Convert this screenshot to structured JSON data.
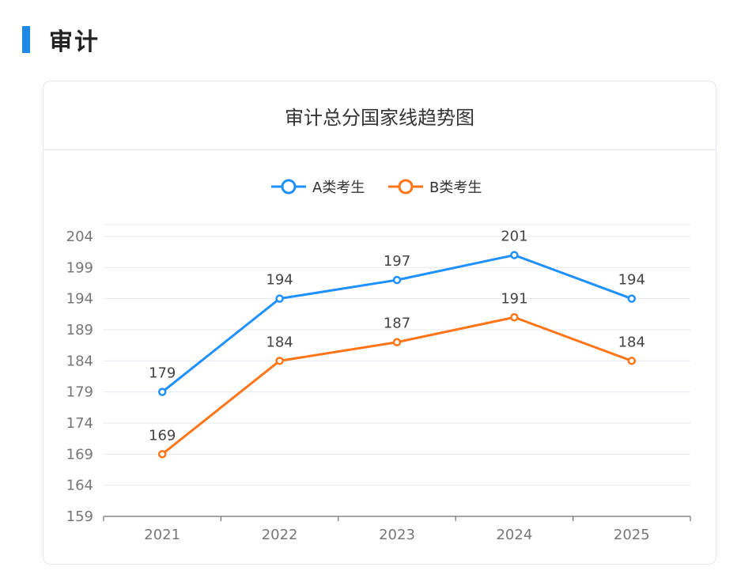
{
  "section": {
    "title": "审计"
  },
  "card": {
    "title": "审计总分国家线趋势图"
  },
  "colors": {
    "accent": "#1e88e5",
    "seriesA": "#1e90ff",
    "seriesB": "#ff7518"
  },
  "chart_data": {
    "type": "line",
    "title": "审计总分国家线趋势图",
    "categories": [
      "2021",
      "2022",
      "2023",
      "2024",
      "2025"
    ],
    "series": [
      {
        "name": "A类考生",
        "color": "#1e90ff",
        "values": [
          179,
          194,
          197,
          201,
          194
        ]
      },
      {
        "name": "B类考生",
        "color": "#ff7518",
        "values": [
          169,
          184,
          187,
          191,
          184
        ]
      }
    ],
    "ylim": [
      159,
      204
    ],
    "yticks": [
      159,
      164,
      169,
      174,
      179,
      184,
      189,
      194,
      199,
      204
    ],
    "legend": "top-center",
    "grid": true,
    "data_labels": true
  }
}
